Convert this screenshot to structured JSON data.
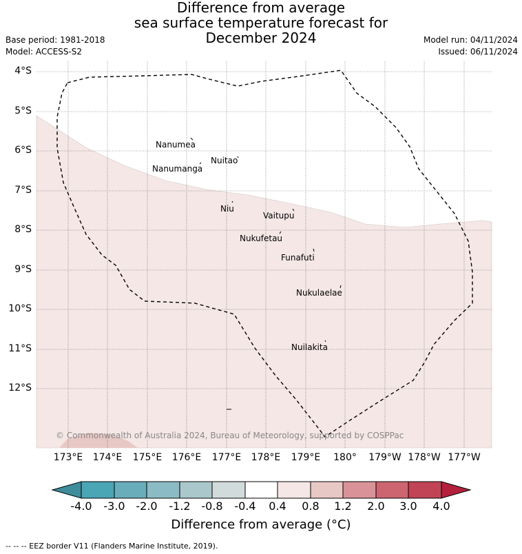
{
  "title": {
    "line1": "Difference from average",
    "line2": "sea surface temperature forecast for",
    "line3": "December 2024"
  },
  "meta": {
    "base_period": "Base period: 1981-2018",
    "model": "Model: ACCESS-S2",
    "model_run": "Model run: 04/11/2024",
    "issued": "Issued: 06/11/2024"
  },
  "map": {
    "y_labels": [
      "4°S",
      "5°S",
      "6°S",
      "7°S",
      "8°S",
      "9°S",
      "10°S",
      "11°S",
      "12°S"
    ],
    "x_labels": [
      "173°E",
      "174°E",
      "175°E",
      "176°E",
      "177°E",
      "178°E",
      "179°E",
      "180°",
      "179°W",
      "178°W",
      "177°W"
    ],
    "islands": [
      "Nanumea",
      "Nuitao",
      "Nanumanga",
      "Niu",
      "Vaitupu",
      "Nukufetau",
      "Funafuti",
      "Nukulaelae",
      "Nuilakita"
    ],
    "copyright": "© Commonwealth of Australia 2024, Bureau of Meteorology, supported by COSPPac",
    "colors": {
      "anomaly_0_4_to_0_8": "#f4e7e6",
      "anomaly_0_8_to_1_2": "#e8c8c5",
      "eez_border": "#000000"
    }
  },
  "colorbar": {
    "ticks": [
      "-4.0",
      "-3.0",
      "-2.0",
      "-1.2",
      "-0.8",
      "-0.4",
      "0.4",
      "0.8",
      "1.2",
      "2.0",
      "3.0",
      "4.0"
    ],
    "colors": [
      "#3f8d9a",
      "#4aa5b5",
      "#69adbb",
      "#8bbcc6",
      "#aac8cc",
      "#d2dbdb",
      "#ffffff",
      "#f4e7e6",
      "#e8c8c5",
      "#da9299",
      "#cd6570",
      "#c04455",
      "#b41f3c"
    ],
    "label": "Difference from average (°C)"
  },
  "footnote": "--  --  -- EEZ border V11 (Flanders Marine Institute, 2019)."
}
